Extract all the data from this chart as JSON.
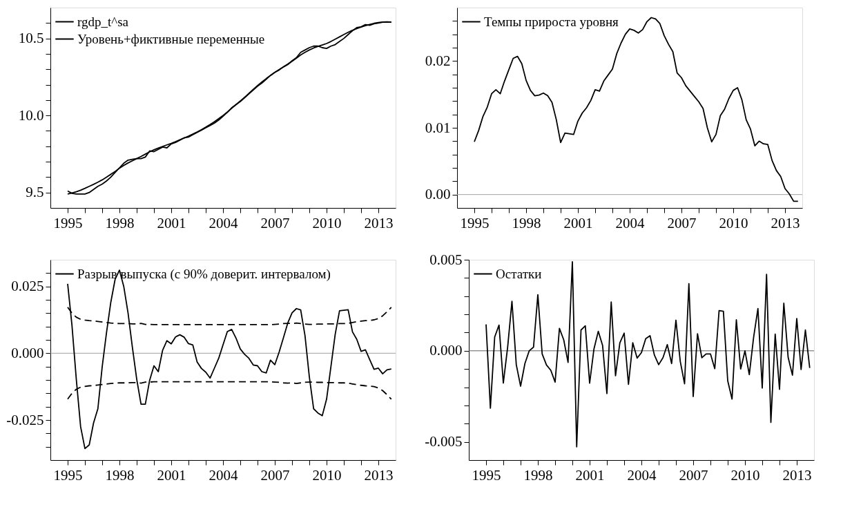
{
  "chart_data": [
    {
      "type": "line",
      "legend": "top left",
      "xlim": [
        1994,
        2014
      ],
      "xticks": [
        1995,
        {
          "value": 1996,
          "label": null
        },
        {
          "value": 1997,
          "label": null
        },
        1998,
        {
          "value": 1999,
          "label": null
        },
        {
          "value": 2000,
          "label": null
        },
        2001,
        {
          "value": 2002,
          "label": null
        },
        {
          "value": 2003,
          "label": null
        },
        2004,
        {
          "value": 2005,
          "label": null
        },
        {
          "value": 2006,
          "label": null
        },
        2007,
        {
          "value": 2008,
          "label": null
        },
        {
          "value": 2009,
          "label": null
        },
        2010,
        {
          "value": 2011,
          "label": null
        },
        {
          "value": 2012,
          "label": null
        },
        2013
      ],
      "ylim": [
        9.4,
        10.7
      ],
      "yticks": [
        {
          "value": 9.5,
          "label": "9.5"
        },
        {
          "value": 9.6,
          "label": null
        },
        {
          "value": 9.7,
          "label": null
        },
        {
          "value": 9.8,
          "label": null
        },
        {
          "value": 9.9,
          "label": null
        },
        {
          "value": 10.0,
          "label": "10.0"
        },
        {
          "value": 10.1,
          "label": null
        },
        {
          "value": 10.2,
          "label": null
        },
        {
          "value": 10.3,
          "label": null
        },
        {
          "value": 10.4,
          "label": null
        },
        {
          "value": 10.5,
          "label": "10.5"
        },
        {
          "value": 10.6,
          "label": null
        }
      ],
      "x": [
        1995.0,
        1995.25,
        1995.5,
        1995.75,
        1996.0,
        1996.25,
        1996.5,
        1996.75,
        1997.0,
        1997.25,
        1997.5,
        1997.75,
        1998.0,
        1998.25,
        1998.5,
        1998.75,
        1999.0,
        1999.25,
        1999.5,
        1999.75,
        2000.0,
        2000.25,
        2000.5,
        2000.75,
        2001.0,
        2001.25,
        2001.5,
        2001.75,
        2002.0,
        2002.25,
        2002.5,
        2002.75,
        2003.0,
        2003.25,
        2003.5,
        2003.75,
        2004.0,
        2004.25,
        2004.5,
        2004.75,
        2005.0,
        2005.25,
        2005.5,
        2005.75,
        2006.0,
        2006.25,
        2006.5,
        2006.75,
        2007.0,
        2007.25,
        2007.5,
        2007.75,
        2008.0,
        2008.25,
        2008.5,
        2008.75,
        2009.0,
        2009.25,
        2009.5,
        2009.75,
        2010.0,
        2010.25,
        2010.5,
        2010.75,
        2011.0,
        2011.25,
        2011.5,
        2011.75,
        2012.0,
        2012.25,
        2012.5,
        2012.75,
        2013.0,
        2013.25,
        2013.5,
        2013.75
      ],
      "series": [
        {
          "name": "rgdp_t^sa",
          "color": "#000000",
          "values": [
            9.51,
            9.495,
            9.49,
            9.49,
            9.49,
            9.5,
            9.52,
            9.54,
            9.555,
            9.575,
            9.6,
            9.63,
            9.66,
            9.69,
            9.71,
            9.715,
            9.72,
            9.72,
            9.73,
            9.77,
            9.765,
            9.78,
            9.795,
            9.79,
            9.815,
            9.825,
            9.84,
            9.855,
            9.86,
            9.875,
            9.89,
            9.905,
            9.92,
            9.935,
            9.95,
            9.97,
            9.995,
            10.02,
            10.05,
            10.07,
            10.09,
            10.115,
            10.14,
            10.165,
            10.19,
            10.21,
            10.235,
            10.26,
            10.28,
            10.295,
            10.315,
            10.33,
            10.355,
            10.375,
            10.41,
            10.425,
            10.44,
            10.45,
            10.45,
            10.44,
            10.435,
            10.45,
            10.46,
            10.48,
            10.5,
            10.525,
            10.55,
            10.57,
            10.575,
            10.59,
            10.585,
            10.595,
            10.6,
            10.605,
            10.605,
            10.605
          ]
        },
        {
          "name": "Уровень+фиктивные переменные",
          "color": "#000000",
          "values": [
            9.49,
            9.497,
            9.505,
            9.515,
            9.527,
            9.54,
            9.553,
            9.567,
            9.582,
            9.6,
            9.618,
            9.637,
            9.658,
            9.676,
            9.692,
            9.706,
            9.72,
            9.734,
            9.749,
            9.764,
            9.777,
            9.788,
            9.799,
            9.809,
            9.819,
            9.83,
            9.842,
            9.854,
            9.866,
            9.879,
            9.893,
            9.908,
            9.924,
            9.941,
            9.959,
            9.979,
            10.0,
            10.022,
            10.046,
            10.07,
            10.094,
            10.118,
            10.143,
            10.169,
            10.194,
            10.217,
            10.239,
            10.26,
            10.28,
            10.298,
            10.316,
            10.333,
            10.351,
            10.371,
            10.393,
            10.41,
            10.425,
            10.438,
            10.448,
            10.457,
            10.467,
            10.48,
            10.495,
            10.51,
            10.525,
            10.54,
            10.553,
            10.564,
            10.574,
            10.583,
            10.591,
            10.598,
            10.603,
            10.606,
            10.607,
            10.606
          ]
        }
      ]
    },
    {
      "type": "line",
      "legend": "top left",
      "xlim": [
        1994,
        2014
      ],
      "xticks": [
        1995,
        {
          "value": 1996,
          "label": null
        },
        {
          "value": 1997,
          "label": null
        },
        1998,
        {
          "value": 1999,
          "label": null
        },
        {
          "value": 2000,
          "label": null
        },
        2001,
        {
          "value": 2002,
          "label": null
        },
        {
          "value": 2003,
          "label": null
        },
        2004,
        {
          "value": 2005,
          "label": null
        },
        {
          "value": 2006,
          "label": null
        },
        2007,
        {
          "value": 2008,
          "label": null
        },
        {
          "value": 2009,
          "label": null
        },
        2010,
        {
          "value": 2011,
          "label": null
        },
        {
          "value": 2012,
          "label": null
        },
        2013
      ],
      "ylim": [
        -0.002,
        0.028
      ],
      "yticks": [
        {
          "value": 0,
          "label": "0.00"
        },
        {
          "value": 0.002,
          "label": null
        },
        {
          "value": 0.004,
          "label": null
        },
        {
          "value": 0.006,
          "label": null
        },
        {
          "value": 0.008,
          "label": null
        },
        0.01,
        {
          "value": 0.012,
          "label": null
        },
        {
          "value": 0.014,
          "label": null
        },
        {
          "value": 0.016,
          "label": null
        },
        {
          "value": 0.018,
          "label": null
        },
        0.02,
        {
          "value": 0.022,
          "label": null
        },
        {
          "value": 0.024,
          "label": null
        },
        {
          "value": 0.026,
          "label": null
        }
      ],
      "ref_lines": [
        {
          "axis": "y",
          "value": 0,
          "color": "#a0a0a0"
        }
      ],
      "x": [
        1995.0,
        1995.25,
        1995.5,
        1995.75,
        1996.0,
        1996.25,
        1996.5,
        1996.75,
        1997.0,
        1997.25,
        1997.5,
        1997.75,
        1998.0,
        1998.25,
        1998.5,
        1998.75,
        1999.0,
        1999.25,
        1999.5,
        1999.75,
        2000.0,
        2000.25,
        2000.5,
        2000.75,
        2001.0,
        2001.25,
        2001.5,
        2001.75,
        2002.0,
        2002.25,
        2002.5,
        2002.75,
        2003.0,
        2003.25,
        2003.5,
        2003.75,
        2004.0,
        2004.25,
        2004.5,
        2004.75,
        2005.0,
        2005.25,
        2005.5,
        2005.75,
        2006.0,
        2006.25,
        2006.5,
        2006.75,
        2007.0,
        2007.25,
        2007.5,
        2007.75,
        2008.0,
        2008.25,
        2008.5,
        2008.75,
        2009.0,
        2009.25,
        2009.5,
        2009.75,
        2010.0,
        2010.25,
        2010.5,
        2010.75,
        2011.0,
        2011.25,
        2011.5,
        2011.75,
        2012.0,
        2012.25,
        2012.5,
        2012.75,
        2013.0,
        2013.25,
        2013.5,
        2013.75
      ],
      "series": [
        {
          "name": "Темпы прироста уровня",
          "color": "#000000",
          "values": [
            0.0079,
            0.0096,
            0.0117,
            0.0131,
            0.0151,
            0.0157,
            0.0151,
            0.017,
            0.0187,
            0.0204,
            0.0207,
            0.0196,
            0.0171,
            0.0156,
            0.0148,
            0.0149,
            0.0152,
            0.0148,
            0.0138,
            0.0112,
            0.0078,
            0.0092,
            0.0091,
            0.009,
            0.011,
            0.0122,
            0.013,
            0.0141,
            0.0157,
            0.0155,
            0.017,
            0.0179,
            0.0188,
            0.0211,
            0.0227,
            0.024,
            0.0248,
            0.0246,
            0.0242,
            0.0247,
            0.0259,
            0.0265,
            0.0263,
            0.0256,
            0.0238,
            0.0225,
            0.0214,
            0.0182,
            0.0175,
            0.0163,
            0.0155,
            0.0147,
            0.0139,
            0.0129,
            0.01,
            0.0079,
            0.009,
            0.0118,
            0.0128,
            0.0144,
            0.0156,
            0.016,
            0.0142,
            0.0112,
            0.0098,
            0.0073,
            0.008,
            0.0076,
            0.0075,
            0.0051,
            0.0036,
            0.0027,
            0.0009,
            0.0001,
            -0.001,
            -0.001
          ]
        }
      ]
    },
    {
      "type": "line",
      "legend": "top left",
      "xlim": [
        1994,
        2014
      ],
      "xticks": [
        1995,
        {
          "value": 1996,
          "label": null
        },
        {
          "value": 1997,
          "label": null
        },
        1998,
        {
          "value": 1999,
          "label": null
        },
        {
          "value": 2000,
          "label": null
        },
        2001,
        {
          "value": 2002,
          "label": null
        },
        {
          "value": 2003,
          "label": null
        },
        2004,
        {
          "value": 2005,
          "label": null
        },
        {
          "value": 2006,
          "label": null
        },
        2007,
        {
          "value": 2008,
          "label": null
        },
        {
          "value": 2009,
          "label": null
        },
        2010,
        {
          "value": 2011,
          "label": null
        },
        {
          "value": 2012,
          "label": null
        },
        2013
      ],
      "ylim": [
        -0.04,
        0.035
      ],
      "yticks": [
        {
          "value": -0.035,
          "label": null
        },
        {
          "value": -0.03,
          "label": null
        },
        -0.025,
        {
          "value": -0.02,
          "label": null
        },
        {
          "value": -0.015,
          "label": null
        },
        {
          "value": -0.01,
          "label": null
        },
        {
          "value": -0.005,
          "label": null
        },
        {
          "value": 0,
          "label": "0.000"
        },
        {
          "value": 0.005,
          "label": null
        },
        {
          "value": 0.01,
          "label": null
        },
        {
          "value": 0.015,
          "label": null
        },
        {
          "value": 0.02,
          "label": null
        },
        0.025,
        {
          "value": 0.03,
          "label": null
        }
      ],
      "ref_lines": [
        {
          "axis": "y",
          "value": 0,
          "color": "#a0a0a0"
        }
      ],
      "x": [
        1995.0,
        1995.25,
        1995.5,
        1995.75,
        1996.0,
        1996.25,
        1996.5,
        1996.75,
        1997.0,
        1997.25,
        1997.5,
        1997.75,
        1998.0,
        1998.25,
        1998.5,
        1998.75,
        1999.0,
        1999.25,
        1999.5,
        1999.75,
        2000.0,
        2000.25,
        2000.5,
        2000.75,
        2001.0,
        2001.25,
        2001.5,
        2001.75,
        2002.0,
        2002.25,
        2002.5,
        2002.75,
        2003.0,
        2003.25,
        2003.5,
        2003.75,
        2004.0,
        2004.25,
        2004.5,
        2004.75,
        2005.0,
        2005.25,
        2005.5,
        2005.75,
        2006.0,
        2006.25,
        2006.5,
        2006.75,
        2007.0,
        2007.25,
        2007.5,
        2007.75,
        2008.0,
        2008.25,
        2008.5,
        2008.75,
        2009.0,
        2009.25,
        2009.5,
        2009.75,
        2010.0,
        2010.25,
        2010.5,
        2010.75,
        2011.0,
        2011.25,
        2011.5,
        2011.75,
        2012.0,
        2012.25,
        2012.5,
        2012.75,
        2013.0,
        2013.25,
        2013.5,
        2013.75
      ],
      "series": [
        {
          "name": "Разрыв выпуска (с  90% доверит. интервалом)",
          "color": "#000000",
          "values": [
            0.026,
            0.0104,
            -0.0097,
            -0.0275,
            -0.0357,
            -0.0343,
            -0.0261,
            -0.0208,
            -0.0051,
            0.0077,
            0.0191,
            0.0277,
            0.0311,
            0.025,
            0.015,
            0.0022,
            -0.0097,
            -0.0191,
            -0.0191,
            -0.0101,
            -0.0047,
            -0.0069,
            0.0011,
            0.0047,
            0.0035,
            0.0061,
            0.0069,
            0.006,
            0.0036,
            0.0031,
            -0.0033,
            -0.0057,
            -0.0071,
            -0.0093,
            -0.0056,
            -0.0019,
            0.0031,
            0.0081,
            0.0089,
            0.0057,
            0.0016,
            -0.0004,
            -0.0019,
            -0.0044,
            -0.0047,
            -0.0069,
            -0.0074,
            -0.0026,
            -0.0043,
            0.0004,
            0.0058,
            0.0113,
            0.0151,
            0.0167,
            0.0162,
            0.0066,
            -0.0088,
            -0.0208,
            -0.0224,
            -0.0234,
            -0.0172,
            -0.0051,
            0.0071,
            0.0159,
            0.0161,
            0.0163,
            0.008,
            0.0052,
            0.0007,
            0.0013,
            -0.0024,
            -0.006,
            -0.0056,
            -0.0077,
            -0.0062,
            -0.0059
          ]
        },
        {
          "color": "#000000",
          "line_style": "dashed",
          "values": [
            0.0172,
            0.015,
            0.0135,
            0.0127,
            0.0124,
            0.0122,
            0.0121,
            0.0119,
            0.0117,
            0.0115,
            0.0113,
            0.0112,
            0.0111,
            0.0111,
            0.0111,
            0.011,
            0.011,
            0.0112,
            0.0108,
            0.0108,
            0.0107,
            0.0107,
            0.0107,
            0.0107,
            0.0107,
            0.0107,
            0.0107,
            0.0107,
            0.0107,
            0.0107,
            0.0107,
            0.0107,
            0.0107,
            0.0107,
            0.0107,
            0.0107,
            0.0107,
            0.0107,
            0.0107,
            0.0107,
            0.0107,
            0.0107,
            0.0107,
            0.0107,
            0.0107,
            0.0107,
            0.0107,
            0.0107,
            0.0108,
            0.0109,
            0.0111,
            0.0112,
            0.0111,
            0.0113,
            0.0111,
            0.0109,
            0.0108,
            0.0108,
            0.0109,
            0.0109,
            0.011,
            0.011,
            0.011,
            0.0111,
            0.0111,
            0.0112,
            0.0115,
            0.0118,
            0.012,
            0.0122,
            0.0123,
            0.0125,
            0.013,
            0.014,
            0.0155,
            0.0172
          ]
        },
        {
          "color": "#000000",
          "line_style": "dashed",
          "values": [
            -0.0172,
            -0.015,
            -0.0135,
            -0.0127,
            -0.0124,
            -0.0122,
            -0.0121,
            -0.0119,
            -0.0117,
            -0.0115,
            -0.0113,
            -0.0112,
            -0.0111,
            -0.0111,
            -0.0111,
            -0.011,
            -0.011,
            -0.0112,
            -0.0108,
            -0.0108,
            -0.0107,
            -0.0107,
            -0.0107,
            -0.0107,
            -0.0107,
            -0.0107,
            -0.0107,
            -0.0107,
            -0.0107,
            -0.0107,
            -0.0107,
            -0.0107,
            -0.0107,
            -0.0107,
            -0.0107,
            -0.0107,
            -0.0107,
            -0.0107,
            -0.0107,
            -0.0107,
            -0.0107,
            -0.0107,
            -0.0107,
            -0.0107,
            -0.0107,
            -0.0107,
            -0.0107,
            -0.0107,
            -0.0108,
            -0.0109,
            -0.0111,
            -0.0112,
            -0.0111,
            -0.0113,
            -0.0111,
            -0.0109,
            -0.0108,
            -0.0108,
            -0.0109,
            -0.0109,
            -0.011,
            -0.011,
            -0.011,
            -0.0111,
            -0.0111,
            -0.0112,
            -0.0115,
            -0.0118,
            -0.012,
            -0.0122,
            -0.0123,
            -0.0125,
            -0.013,
            -0.014,
            -0.0155,
            -0.0172
          ]
        }
      ]
    },
    {
      "type": "line",
      "legend": "top left",
      "xlim": [
        1994,
        2014
      ],
      "xticks": [
        1995,
        {
          "value": 1996,
          "label": null
        },
        {
          "value": 1997,
          "label": null
        },
        1998,
        {
          "value": 1999,
          "label": null
        },
        {
          "value": 2000,
          "label": null
        },
        2001,
        {
          "value": 2002,
          "label": null
        },
        {
          "value": 2003,
          "label": null
        },
        2004,
        {
          "value": 2005,
          "label": null
        },
        {
          "value": 2006,
          "label": null
        },
        2007,
        {
          "value": 2008,
          "label": null
        },
        {
          "value": 2009,
          "label": null
        },
        2010,
        {
          "value": 2011,
          "label": null
        },
        {
          "value": 2012,
          "label": null
        },
        2013
      ],
      "ylim": [
        -0.006,
        0.005
      ],
      "yticks": [
        -0.005,
        {
          "value": -0.004,
          "label": null
        },
        {
          "value": -0.003,
          "label": null
        },
        {
          "value": -0.002,
          "label": null
        },
        {
          "value": -0.001,
          "label": null
        },
        {
          "value": 0,
          "label": "0.000"
        },
        {
          "value": 0.001,
          "label": null
        },
        {
          "value": 0.002,
          "label": null
        },
        {
          "value": 0.003,
          "label": null
        },
        {
          "value": 0.004,
          "label": null
        },
        0.005
      ],
      "ref_lines": [
        {
          "axis": "y",
          "value": 0,
          "color": "#606060"
        }
      ],
      "x": [
        1995.0,
        1995.25,
        1995.5,
        1995.75,
        1996.0,
        1996.25,
        1996.5,
        1996.75,
        1997.0,
        1997.25,
        1997.5,
        1997.75,
        1998.0,
        1998.25,
        1998.5,
        1998.75,
        1999.0,
        1999.25,
        1999.5,
        1999.75,
        2000.0,
        2000.25,
        2000.5,
        2000.75,
        2001.0,
        2001.25,
        2001.5,
        2001.75,
        2002.0,
        2002.25,
        2002.5,
        2002.75,
        2003.0,
        2003.25,
        2003.5,
        2003.75,
        2004.0,
        2004.25,
        2004.5,
        2004.75,
        2005.0,
        2005.25,
        2005.5,
        2005.75,
        2006.0,
        2006.25,
        2006.5,
        2006.75,
        2007.0,
        2007.25,
        2007.5,
        2007.75,
        2008.0,
        2008.25,
        2008.5,
        2008.75,
        2009.0,
        2009.25,
        2009.5,
        2009.75,
        2010.0,
        2010.25,
        2010.5,
        2010.75,
        2011.0,
        2011.25,
        2011.5,
        2011.75,
        2012.0,
        2012.25,
        2012.5,
        2012.75,
        2013.0,
        2013.25,
        2013.5,
        2013.75
      ],
      "series": [
        {
          "name": "Остатки",
          "color": "#000000",
          "values": [
            0.00145,
            -0.00315,
            0.00076,
            0.00141,
            -0.00177,
            0.0002,
            0.00272,
            -0.00076,
            -0.00194,
            -0.0007,
            0.0,
            0.0002,
            0.00308,
            -0.00017,
            -0.00078,
            -0.00107,
            -0.00172,
            0.00123,
            0.0006,
            -0.00064,
            0.00489,
            -0.00527,
            0.00114,
            0.00137,
            -0.00178,
            0.0001,
            0.00107,
            0.0003,
            -0.00235,
            0.00268,
            -0.00137,
            0.00043,
            0.00097,
            -0.00184,
            0.00044,
            -0.0004,
            -0.0001,
            0.00067,
            0.00083,
            -0.00023,
            -0.00076,
            -0.00038,
            0.00034,
            -0.0007,
            0.00168,
            -0.00058,
            -0.00181,
            0.00369,
            -0.00251,
            0.00094,
            -0.00038,
            -0.00017,
            -0.00017,
            -0.00098,
            0.00221,
            0.00217,
            -0.00165,
            -0.00265,
            0.0017,
            -0.001,
            0.0,
            -0.00131,
            0.00074,
            0.00232,
            -0.00204,
            0.0042,
            -0.00393,
            0.00092,
            -0.00212,
            0.00261,
            -0.00036,
            -0.00134,
            0.00177,
            -0.00103,
            0.00114,
            -0.00094
          ]
        }
      ]
    }
  ]
}
